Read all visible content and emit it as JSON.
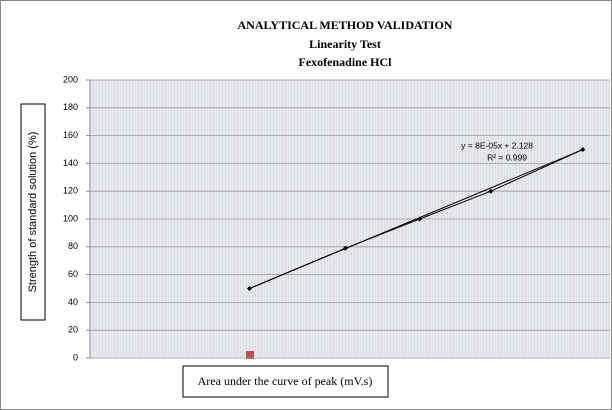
{
  "chart_data": {
    "type": "line",
    "title": "ANALYTICAL METHOD VALIDATION",
    "subtitle": [
      "Linearity Test",
      "Fexofenadine HCl"
    ],
    "y_label": "Strength of standard solution (%)",
    "x_label": "Area under the curve of peak (mV.s)",
    "x": [
      598000,
      958000,
      1236000,
      1503000,
      1848000
    ],
    "series": [
      {
        "color": "#000000",
        "values": [
          50,
          79,
          100,
          120,
          150
        ]
      }
    ],
    "trendline": {
      "slope": 8e-05,
      "intercept": 2.128,
      "equation": "y = 8E-05x + 2.128",
      "r2": "R² = 0.999"
    },
    "xlim": [
      0,
      1950000
    ],
    "ylim": [
      0,
      200
    ],
    "yticks": [
      0,
      20,
      40,
      60,
      80,
      100,
      120,
      140,
      160,
      180,
      200
    ],
    "grid": true
  }
}
